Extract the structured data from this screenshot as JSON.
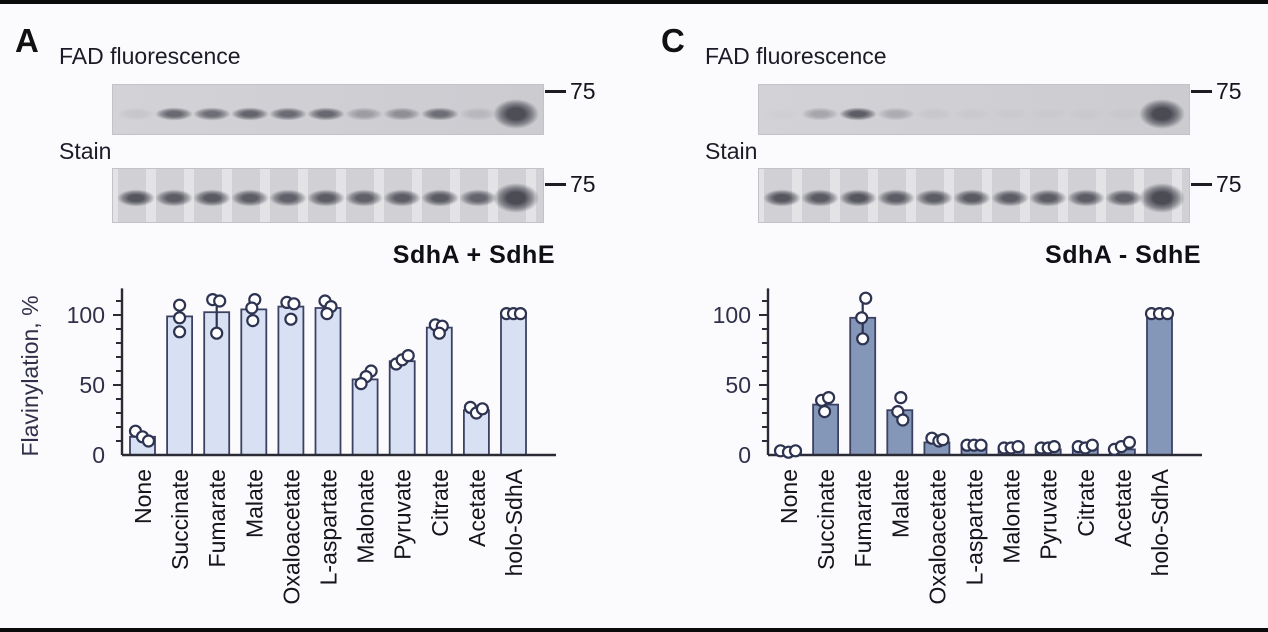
{
  "figure": {
    "background": "#fbfbfd",
    "border_color": "#0b0b0b",
    "text_color": "#17171f"
  },
  "panels": [
    {
      "letter": "A",
      "fad_label": "FAD fluorescence",
      "stain_label": "Stain",
      "marker_label": "75",
      "fad_lanes": [
        0.08,
        0.72,
        0.68,
        0.75,
        0.7,
        0.72,
        0.35,
        0.45,
        0.68,
        0.15,
        0.9
      ],
      "stain_lanes": [
        0.85,
        0.8,
        0.82,
        0.8,
        0.78,
        0.8,
        0.78,
        0.8,
        0.82,
        0.75,
        0.92
      ],
      "blob_lane": 10
    },
    {
      "letter": "C",
      "fad_label": "FAD fluorescence",
      "stain_label": "Stain",
      "marker_label": "75",
      "fad_lanes": [
        0.02,
        0.3,
        0.8,
        0.25,
        0.06,
        0.04,
        0.03,
        0.03,
        0.03,
        0.03,
        0.92
      ],
      "stain_lanes": [
        0.85,
        0.82,
        0.85,
        0.8,
        0.8,
        0.82,
        0.8,
        0.8,
        0.8,
        0.78,
        0.92
      ],
      "blob_lane": 10
    }
  ],
  "chart_data": [
    {
      "type": "bar",
      "title": "SdhA + SdhE",
      "ylabel": "Flavinylation, %",
      "categories": [
        "None",
        "Succinate",
        "Fumarate",
        "Malate",
        "Oxaloacetate",
        "L-aspartate",
        "Malonate",
        "Pyruvate",
        "Citrate",
        "Acetate",
        "holo-SdhA"
      ],
      "values": [
        13,
        99,
        102,
        104,
        106,
        105,
        54,
        67,
        91,
        32,
        101
      ],
      "points": [
        [
          [
            -7,
            17
          ],
          [
            0,
            13
          ],
          [
            6,
            10
          ]
        ],
        [
          [
            0,
            107
          ],
          [
            0,
            98
          ],
          [
            0,
            88
          ]
        ],
        [
          [
            -4,
            111
          ],
          [
            3,
            110
          ],
          [
            0,
            87
          ]
        ],
        [
          [
            1,
            111
          ],
          [
            -2,
            105
          ],
          [
            -1,
            96
          ]
        ],
        [
          [
            -4,
            109
          ],
          [
            3,
            108
          ],
          [
            0,
            97
          ]
        ],
        [
          [
            -3,
            110
          ],
          [
            3,
            106
          ],
          [
            -1,
            101
          ]
        ],
        [
          [
            6,
            60
          ],
          [
            1,
            56
          ],
          [
            -4,
            51
          ]
        ],
        [
          [
            -6,
            65
          ],
          [
            0,
            68
          ],
          [
            6,
            71
          ]
        ],
        [
          [
            -4,
            93
          ],
          [
            3,
            92
          ],
          [
            0,
            87
          ]
        ],
        [
          [
            -6,
            34
          ],
          [
            0,
            30
          ],
          [
            6,
            33
          ]
        ],
        [
          [
            -7,
            101
          ],
          [
            0,
            101
          ],
          [
            7,
            101
          ]
        ]
      ],
      "error_lines": {
        "2": [
          87,
          112
        ]
      },
      "yticks": [
        0,
        50,
        100
      ],
      "ylim": [
        0,
        119
      ],
      "grid": false,
      "bar_fill": "#d8e1f3",
      "bar_stroke": "#3c4163",
      "point_fill": "#ffffff",
      "point_stroke": "#2d3350",
      "axis_color": "#2b2b36",
      "tick_label_color": "#30304a",
      "category_label_color": "#15151d"
    },
    {
      "type": "bar",
      "title": "SdhA - SdhE",
      "ylabel": "",
      "categories": [
        "None",
        "Succinate",
        "Fumarate",
        "Malate",
        "Oxaloacetate",
        "L-aspartate",
        "Malonate",
        "Pyruvate",
        "Citrate",
        "Acetate",
        "holo-SdhA"
      ],
      "values": [
        2,
        36,
        98,
        32,
        9,
        6,
        4,
        4,
        5,
        4,
        100
      ],
      "points": [
        [
          [
            -8,
            3
          ],
          [
            0,
            2
          ],
          [
            7,
            3
          ]
        ],
        [
          [
            -4,
            39
          ],
          [
            3,
            41
          ],
          [
            -1,
            31
          ]
        ],
        [
          [
            3,
            112
          ],
          [
            -1,
            98
          ],
          [
            0,
            83
          ]
        ],
        [
          [
            1,
            41
          ],
          [
            -2,
            31
          ],
          [
            3,
            25
          ]
        ],
        [
          [
            -5,
            12
          ],
          [
            2,
            10
          ],
          [
            6,
            11
          ]
        ],
        [
          [
            -7,
            7
          ],
          [
            0,
            7
          ],
          [
            7,
            7
          ]
        ],
        [
          [
            -7,
            5
          ],
          [
            0,
            5
          ],
          [
            7,
            6
          ]
        ],
        [
          [
            -7,
            5
          ],
          [
            0,
            5
          ],
          [
            6,
            6
          ]
        ],
        [
          [
            -7,
            6
          ],
          [
            0,
            5
          ],
          [
            7,
            7
          ]
        ],
        [
          [
            -8,
            4
          ],
          [
            -1,
            6
          ],
          [
            7,
            9
          ]
        ],
        [
          [
            -8,
            101
          ],
          [
            0,
            101
          ],
          [
            8,
            101
          ]
        ]
      ],
      "error_lines": {
        "2": [
          83,
          113
        ]
      },
      "yticks": [
        0,
        50,
        100
      ],
      "ylim": [
        0,
        119
      ],
      "grid": false,
      "bar_fill": "#8497b8",
      "bar_stroke": "#3c4163",
      "point_fill": "#ffffff",
      "point_stroke": "#2d3350",
      "axis_color": "#2b2b36",
      "tick_label_color": "#30304a",
      "category_label_color": "#15151d"
    }
  ]
}
